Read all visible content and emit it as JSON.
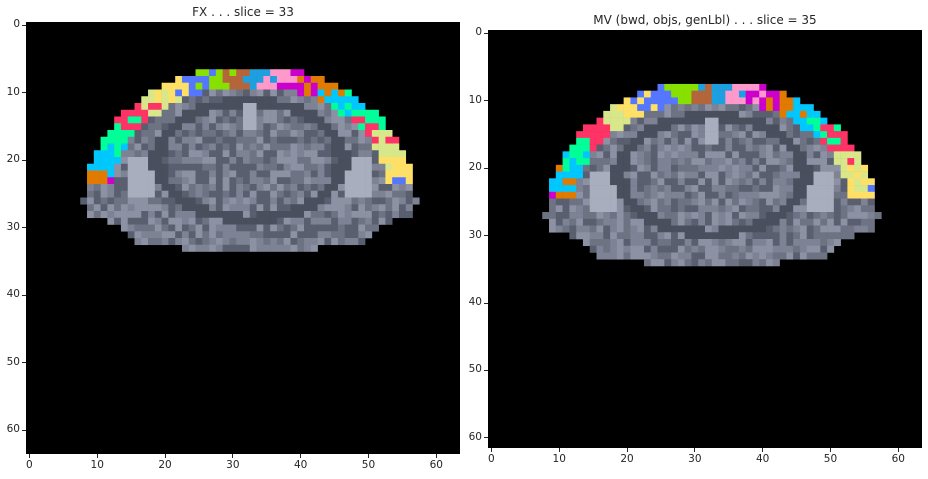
{
  "panels": [
    {
      "title": "FX . . . slice = 33",
      "x_ticks": [
        "0",
        "10",
        "20",
        "30",
        "40",
        "50",
        "60"
      ],
      "y_ticks": [
        "0",
        "10",
        "20",
        "30",
        "40",
        "50",
        "60"
      ],
      "xlim": [
        -0.5,
        63.5
      ],
      "ylim": [
        63.5,
        -0.5
      ]
    },
    {
      "title": "MV (bwd, objs, genLbl) . . . slice = 35",
      "x_ticks": [
        "0",
        "10",
        "20",
        "30",
        "40",
        "50",
        "60"
      ],
      "y_ticks": [
        "0",
        "10",
        "20",
        "30",
        "40",
        "50",
        "60"
      ],
      "xlim": [
        -0.5,
        63.5
      ],
      "ylim": [
        61.5,
        -0.5
      ]
    }
  ],
  "colors": {
    "background": "#000000",
    "brain_gray": "#6e7384",
    "label_palette": [
      "#cc00cc",
      "#e07a00",
      "#00c8ff",
      "#00ff99",
      "#ff3366",
      "#d7e78a",
      "#ffe066",
      "#5577ff",
      "#88e000",
      "#b5653a",
      "#1d9fe0",
      "#ff99cc"
    ]
  }
}
